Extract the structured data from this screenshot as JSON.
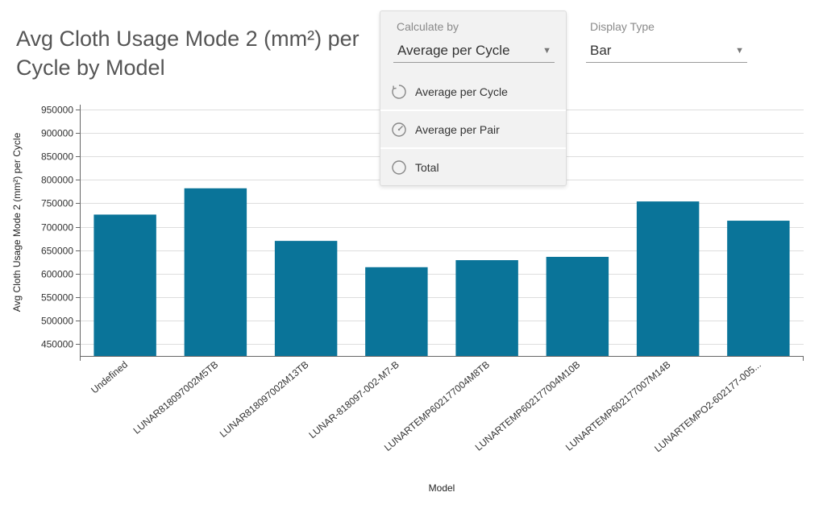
{
  "header": {
    "title": "Avg Cloth Usage Mode 2 (mm²) per Cycle by Model"
  },
  "calculate_by": {
    "label": "Calculate by",
    "selected": "Average per Cycle",
    "options": [
      {
        "label": "Average per Cycle",
        "icon": "refresh-icon"
      },
      {
        "label": "Average per Pair",
        "icon": "gauge-icon"
      },
      {
        "label": "Total",
        "icon": "circle-icon"
      }
    ]
  },
  "display_type": {
    "label": "Display Type",
    "selected": "Bar"
  },
  "colors": {
    "bar": "#0a7499",
    "grid": "#dddddd",
    "axis": "#666666"
  },
  "chart_data": {
    "type": "bar",
    "categories": [
      "Undefined",
      "LUNAR818097002M5TB",
      "LUNAR818097002M13TB",
      "LUNAR-818097-002-M7-B",
      "LUNARTEMP602177004M8TB",
      "LUNARTEMP602177004M10B",
      "LUNARTEMP602177007M14B",
      "LUNARTEMPO2-602177-005..."
    ],
    "values": [
      726000,
      782000,
      670000,
      614000,
      629000,
      636000,
      754000,
      713000
    ],
    "xlabel": "Model",
    "ylabel": "Avg Cloth Usage Mode 2 (mm²) per Cycle",
    "ylim": [
      425000,
      960000
    ],
    "yticks": [
      450000,
      500000,
      550000,
      600000,
      650000,
      700000,
      750000,
      800000,
      850000,
      900000,
      950000
    ],
    "grid": true
  }
}
